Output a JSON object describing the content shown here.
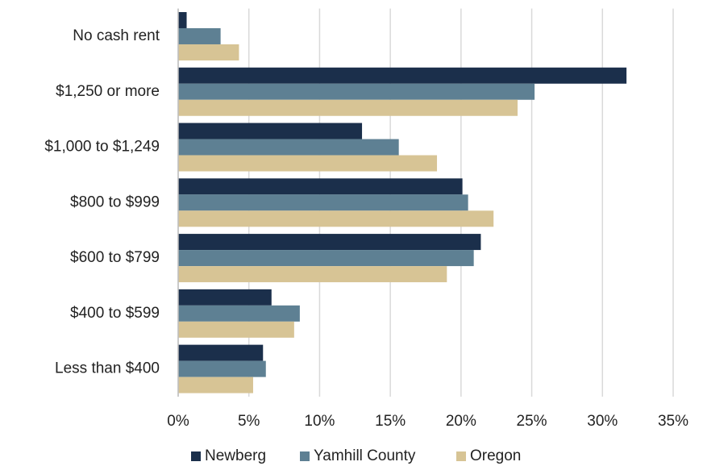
{
  "chart_data": {
    "type": "hbar",
    "categories": [
      "No cash rent",
      "$1,250 or more",
      "$1,000 to $1,249",
      "$800 to $999",
      "$600 to $799",
      "$400 to $599",
      "Less than $400"
    ],
    "series": [
      {
        "name": "Newberg",
        "color": "#1b2f4b",
        "values": [
          0.6,
          31.7,
          13.0,
          20.1,
          21.4,
          6.6,
          6.0
        ]
      },
      {
        "name": "Yamhill County",
        "color": "#5e8093",
        "values": [
          3.0,
          25.2,
          15.6,
          20.5,
          20.9,
          8.6,
          6.2
        ]
      },
      {
        "name": "Oregon",
        "color": "#d7c495",
        "values": [
          4.3,
          24.0,
          18.3,
          22.3,
          19.0,
          8.2,
          5.3
        ]
      }
    ],
    "xlim": [
      0,
      35
    ],
    "xticks": [
      {
        "value": 0,
        "label": "0%"
      },
      {
        "value": 5,
        "label": "5%"
      },
      {
        "value": 10,
        "label": "10%"
      },
      {
        "value": 15,
        "label": "15%"
      },
      {
        "value": 20,
        "label": "20%"
      },
      {
        "value": 25,
        "label": "25%"
      },
      {
        "value": 30,
        "label": "30%"
      },
      {
        "value": 35,
        "label": "35%"
      }
    ],
    "grid": true,
    "legend": "bottom"
  }
}
